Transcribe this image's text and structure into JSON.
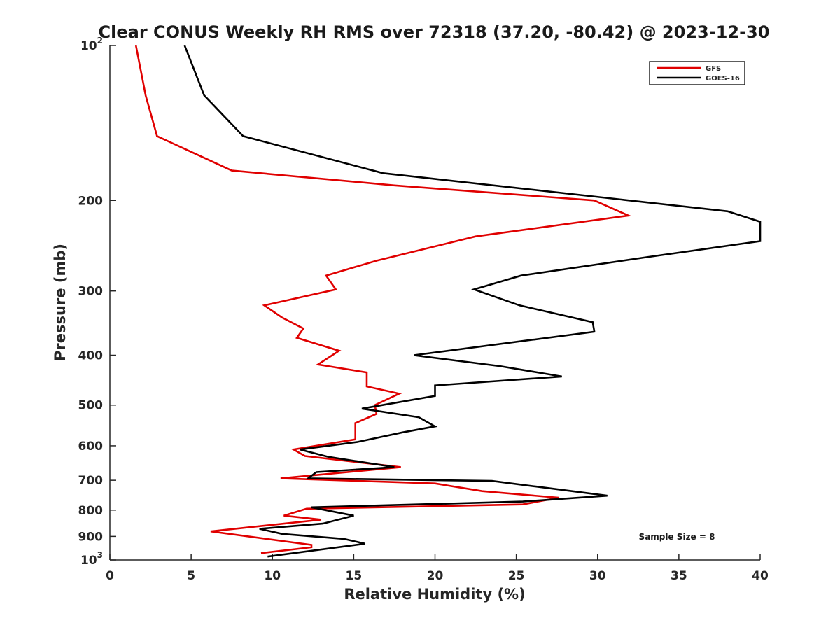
{
  "chart_data": {
    "type": "line",
    "title": "Clear CONUS Weekly RH RMS over 72318 (37.20, -80.42) @ 2023-12-30",
    "xlabel": "Relative Humidity (%)",
    "ylabel": "Pressure (mb)",
    "xlim": [
      0,
      40
    ],
    "ylim": [
      100,
      1000
    ],
    "y_scale": "log",
    "y_reversed": true,
    "x_ticks": [
      "0",
      "5",
      "10",
      "15",
      "20",
      "25",
      "30",
      "35",
      "40"
    ],
    "y_ticks": [
      {
        "value": 100,
        "base": "10",
        "sup": "2"
      },
      {
        "value": 200,
        "label": "200"
      },
      {
        "value": 300,
        "label": "300"
      },
      {
        "value": 400,
        "label": "400"
      },
      {
        "value": 500,
        "label": "500"
      },
      {
        "value": 600,
        "label": "600"
      },
      {
        "value": 700,
        "label": "700"
      },
      {
        "value": 800,
        "label": "800"
      },
      {
        "value": 900,
        "label": "900"
      },
      {
        "value": 1000,
        "base": "10",
        "sup": "3"
      }
    ],
    "legend_position": "top-right",
    "annotation": "Sample Size = 8",
    "series": [
      {
        "name": "GFS",
        "color": "#e00000",
        "points": [
          [
            1.6,
            100
          ],
          [
            2.2,
            125
          ],
          [
            2.9,
            150
          ],
          [
            7.5,
            175
          ],
          [
            17.5,
            187
          ],
          [
            29.8,
            200
          ],
          [
            31.9,
            214
          ],
          [
            22.5,
            235
          ],
          [
            16.4,
            262
          ],
          [
            13.3,
            280
          ],
          [
            13.9,
            298
          ],
          [
            9.5,
            320
          ],
          [
            10.6,
            338
          ],
          [
            11.9,
            355
          ],
          [
            11.5,
            370
          ],
          [
            14.1,
            392
          ],
          [
            12.8,
            417
          ],
          [
            15.8,
            432
          ],
          [
            15.8,
            460
          ],
          [
            17.8,
            475
          ],
          [
            16.3,
            500
          ],
          [
            16.4,
            520
          ],
          [
            15.1,
            542
          ],
          [
            15.1,
            583
          ],
          [
            11.3,
            610
          ],
          [
            12.0,
            628
          ],
          [
            17.9,
            660
          ],
          [
            10.5,
            694
          ],
          [
            20.0,
            710
          ],
          [
            22.9,
            735
          ],
          [
            27.6,
            757
          ],
          [
            25.4,
            780
          ],
          [
            12.1,
            795
          ],
          [
            10.7,
            820
          ],
          [
            13.0,
            835
          ],
          [
            6.2,
            880
          ],
          [
            12.4,
            935
          ],
          [
            12.4,
            945
          ],
          [
            9.3,
            970
          ]
        ]
      },
      {
        "name": "GOES-16",
        "color": "#000000",
        "points": [
          [
            4.6,
            100
          ],
          [
            5.8,
            125
          ],
          [
            8.2,
            150
          ],
          [
            16.8,
            177
          ],
          [
            38.0,
            210
          ],
          [
            40.0,
            220
          ],
          [
            40.0,
            240
          ],
          [
            33.0,
            258
          ],
          [
            25.3,
            280
          ],
          [
            22.4,
            298
          ],
          [
            25.2,
            320
          ],
          [
            29.7,
            345
          ],
          [
            29.8,
            360
          ],
          [
            18.7,
            400
          ],
          [
            24.0,
            420
          ],
          [
            27.8,
            440
          ],
          [
            20.0,
            458
          ],
          [
            20.0,
            480
          ],
          [
            15.5,
            508
          ],
          [
            19.0,
            528
          ],
          [
            20.0,
            550
          ],
          [
            18.0,
            565
          ],
          [
            15.2,
            590
          ],
          [
            11.7,
            610
          ],
          [
            13.4,
            630
          ],
          [
            17.5,
            660
          ],
          [
            12.7,
            675
          ],
          [
            12.2,
            694
          ],
          [
            23.5,
            702
          ],
          [
            26.2,
            720
          ],
          [
            30.6,
            750
          ],
          [
            25.4,
            770
          ],
          [
            12.4,
            790
          ],
          [
            15.0,
            820
          ],
          [
            13.1,
            850
          ],
          [
            9.2,
            870
          ],
          [
            10.6,
            890
          ],
          [
            14.4,
            910
          ],
          [
            15.7,
            930
          ],
          [
            9.7,
            985
          ]
        ]
      }
    ]
  }
}
